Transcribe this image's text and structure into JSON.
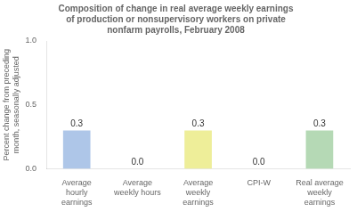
{
  "chart_data": {
    "type": "bar",
    "title": "Composition of change in real average weekly earnings\nof production or nonsupervisory workers on private\nnonfarm payrolls, February 2008",
    "categories": [
      "Average\nhourly\nearnings",
      "Average\nweekly hours",
      "Average\nweekly\nearnings",
      "CPI-W",
      "Real average\nweekly\nearnings"
    ],
    "values": [
      0.3,
      0.0,
      0.3,
      0.0,
      0.3
    ],
    "value_labels": [
      "0.3",
      "0.0",
      "0.3",
      "0.0",
      "0.3"
    ],
    "data_labels": true,
    "colors": [
      "#aec6e8",
      "#d3d3d3",
      "#eeee99",
      "#d3d3d3",
      "#b5d9b5"
    ],
    "ylabel": "Percent change from preceding\nmonth, seasonally adjusted",
    "ylim": [
      0.0,
      1.0
    ],
    "yticks": [
      {
        "value": 0.0,
        "label": "0.0"
      },
      0.5,
      {
        "value": 1.0,
        "label": "1.0"
      }
    ],
    "grid": false
  }
}
